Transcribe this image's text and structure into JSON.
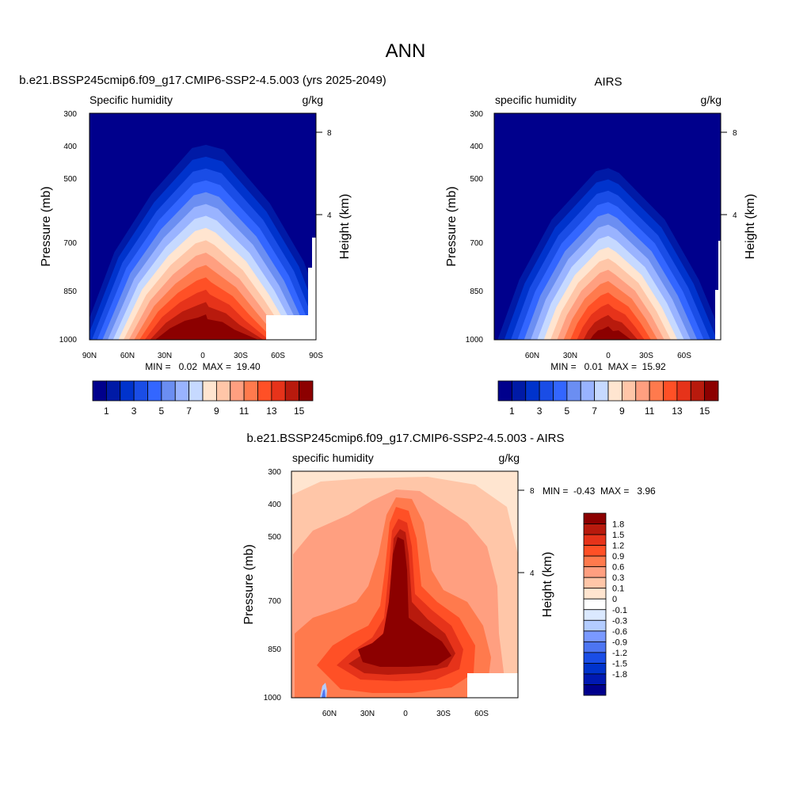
{
  "page_title": "ANN",
  "colors": {
    "seq": [
      "#00008c",
      "#001aa6",
      "#0033cc",
      "#1a4de6",
      "#3366ff",
      "#6b8ef2",
      "#99b3ff",
      "#c6d9ff",
      "#ffe5d0",
      "#ffc6a8",
      "#ff9f80",
      "#ff7a4d",
      "#ff5026",
      "#e6331a",
      "#b81a0d",
      "#8c0000"
    ],
    "diff": [
      "#00008c",
      "#0019b2",
      "#0033cc",
      "#1a4de6",
      "#4d75f2",
      "#7a99ff",
      "#b3ccff",
      "#dbe9ff",
      "#ffffff",
      "#ffe5d0",
      "#ffc6a8",
      "#ff9f80",
      "#ff7a4d",
      "#ff5026",
      "#e6331a",
      "#b81a0d",
      "#8c0000"
    ]
  },
  "chart_data": [
    {
      "type": "heatmap",
      "title": "b.e21.BSSP245cmip6.f09_g17.CMIP6-SSP2-4.5.003 (yrs 2025-2049)",
      "left_label": "Specific humidity",
      "right_label": "g/kg",
      "ylabel": "Pressure (mb)",
      "ylabel_right": "Height (km)",
      "yticks": [
        300,
        400,
        500,
        700,
        850,
        1000
      ],
      "yticks_right": [
        8,
        4
      ],
      "ylim": [
        300,
        1000
      ],
      "xticks": [
        "90N",
        "60N",
        "30N",
        "0",
        "30S",
        "60S",
        "90S"
      ],
      "xlim": [
        90,
        -90
      ],
      "stats": "MIN =   0.02  MAX =  19.40",
      "legend_labels": [
        "1",
        "3",
        "5",
        "7",
        "9",
        "11",
        "13",
        "15"
      ],
      "levels": [
        1,
        2,
        3,
        4,
        5,
        6,
        7,
        8,
        9,
        10,
        11,
        12,
        13,
        14,
        15
      ],
      "peak": 19.4
    },
    {
      "type": "heatmap",
      "title": "AIRS",
      "left_label": "specific humidity",
      "right_label": "g/kg",
      "ylabel": "Pressure (mb)",
      "ylabel_right": "Height (km)",
      "yticks": [
        300,
        400,
        500,
        700,
        850,
        1000
      ],
      "yticks_right": [
        8,
        4
      ],
      "ylim": [
        300,
        1000
      ],
      "xticks": [
        "60N",
        "30N",
        "0",
        "30S",
        "60S"
      ],
      "xlim": [
        90,
        -90
      ],
      "stats": "MIN =   0.01  MAX =  15.92",
      "legend_labels": [
        "1",
        "3",
        "5",
        "7",
        "9",
        "11",
        "13",
        "15"
      ],
      "levels": [
        1,
        2,
        3,
        4,
        5,
        6,
        7,
        8,
        9,
        10,
        11,
        12,
        13,
        14,
        15
      ],
      "peak": 15.92
    },
    {
      "type": "heatmap",
      "title": "b.e21.BSSP245cmip6.f09_g17.CMIP6-SSP2-4.5.003 - AIRS",
      "left_label": "specific humidity",
      "right_label": "g/kg",
      "ylabel": "Pressure (mb)",
      "ylabel_right": "Height (km)",
      "yticks": [
        300,
        400,
        500,
        700,
        850,
        1000
      ],
      "yticks_right": [
        8,
        4
      ],
      "ylim": [
        300,
        1000
      ],
      "xticks": [
        "60N",
        "30N",
        "0",
        "30S",
        "60S"
      ],
      "xlim": [
        90,
        -90
      ],
      "stats": "MIN =  -0.43  MAX =   3.96",
      "legend_labels": [
        "1.8",
        "1.5",
        "1.2",
        "0.9",
        "0.6",
        "0.3",
        "0.1",
        "0",
        "-0.1",
        "-0.3",
        "-0.6",
        "-0.9",
        "-1.2",
        "-1.5",
        "-1.8"
      ],
      "levels": [
        -1.8,
        -1.5,
        -1.2,
        -0.9,
        -0.6,
        -0.3,
        -0.1,
        0,
        0.1,
        0.3,
        0.6,
        0.9,
        1.2,
        1.5,
        1.8
      ]
    }
  ]
}
